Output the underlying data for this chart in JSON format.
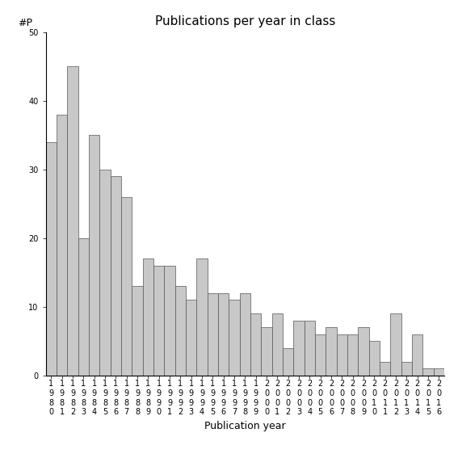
{
  "years": [
    1980,
    1981,
    1982,
    1983,
    1984,
    1985,
    1986,
    1987,
    1988,
    1989,
    1990,
    1991,
    1992,
    1993,
    1994,
    1995,
    1996,
    1997,
    1998,
    1999,
    2000,
    2001,
    2002,
    2003,
    2004,
    2005,
    2006,
    2007,
    2008,
    2009,
    2010,
    2011,
    2012,
    2013,
    2014,
    2015,
    2016
  ],
  "values": [
    34,
    38,
    45,
    20,
    35,
    30,
    29,
    26,
    13,
    17,
    16,
    16,
    13,
    11,
    17,
    12,
    12,
    11,
    12,
    9,
    7,
    9,
    4,
    8,
    8,
    6,
    7,
    6,
    6,
    7,
    5,
    2,
    9,
    2,
    6,
    1,
    1
  ],
  "title": "Publications per year in class",
  "xlabel": "Publication year",
  "ylabel": "#P",
  "ylim": [
    0,
    50
  ],
  "yticks": [
    0,
    10,
    20,
    30,
    40,
    50
  ],
  "bar_color": "#c8c8c8",
  "bar_edge_color": "#555555",
  "bg_color": "#ffffff",
  "title_fontsize": 11,
  "axis_fontsize": 9,
  "tick_fontsize": 7
}
